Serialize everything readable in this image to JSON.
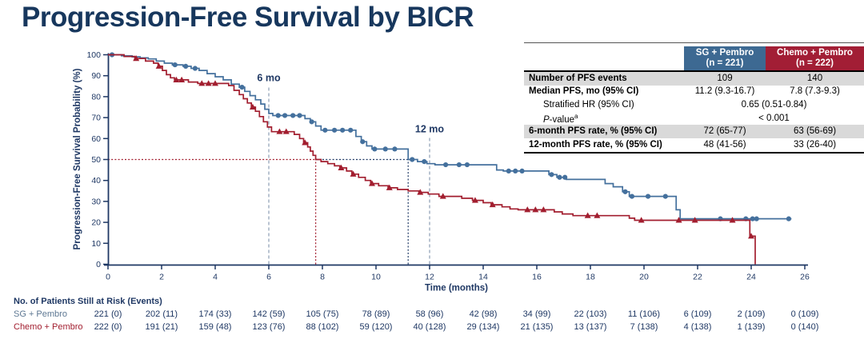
{
  "title": "Progression-Free Survival by BICR",
  "colors": {
    "navy": "#1F3864",
    "title_navy": "#17375D",
    "sg_blue": "#44709D",
    "sg_header": "#3D6992",
    "chemo_red": "#A21E2F",
    "chemo_header": "#A21E35",
    "shaded_row": "#D9D9D9",
    "dashed_ref": "#8C9DB3",
    "at_risk_sg_label": "#5E7893"
  },
  "chart_data": {
    "type": "line",
    "subtype": "kaplan-meier-step",
    "xlabel": "Time (months)",
    "ylabel": "Progression-Free Survival Probability (%)",
    "xlim": [
      0,
      26
    ],
    "ylim": [
      0,
      100
    ],
    "x_ticks": [
      0,
      2,
      4,
      6,
      8,
      10,
      12,
      14,
      16,
      18,
      20,
      22,
      24,
      26
    ],
    "y_ticks": [
      0,
      10,
      20,
      30,
      40,
      50,
      60,
      70,
      80,
      90,
      100
    ],
    "grid": false,
    "legend_position": "none",
    "annotations": [
      {
        "label": "6 mo",
        "x": 6,
        "label_pct": 89,
        "line_top_pct": 85
      },
      {
        "label": "12 mo",
        "x": 12,
        "label_pct": 64.5,
        "line_top_pct": 60.5
      }
    ],
    "reference_lines": [
      {
        "orientation": "v",
        "at": 6,
        "from": 0,
        "to": 85,
        "color": "dashed_ref",
        "style": "dash"
      },
      {
        "orientation": "v",
        "at": 12,
        "from": 0,
        "to": 60.5,
        "color": "dashed_ref",
        "style": "dash"
      },
      {
        "orientation": "h",
        "at": 50,
        "from": 0,
        "to": 7.75,
        "color": "chemo_red",
        "style": "dot"
      },
      {
        "orientation": "h",
        "at": 50,
        "from": 7.75,
        "to": 11.2,
        "color": "navy",
        "style": "dot"
      },
      {
        "orientation": "v",
        "at": 7.75,
        "from": 0,
        "to": 50,
        "color": "chemo_red",
        "style": "dot"
      },
      {
        "orientation": "v",
        "at": 11.2,
        "from": 0,
        "to": 50,
        "color": "navy",
        "style": "dot"
      }
    ],
    "series": [
      {
        "name": "SG + Pembro",
        "color_key": "sg_blue",
        "marker": "circle",
        "points": [
          [
            0,
            100
          ],
          [
            0.5,
            99.5
          ],
          [
            0.9,
            99
          ],
          [
            1.2,
            98.5
          ],
          [
            1.5,
            98
          ],
          [
            1.8,
            97
          ],
          [
            2.1,
            96
          ],
          [
            2.4,
            95.2
          ],
          [
            2.8,
            94.5
          ],
          [
            3.1,
            93.5
          ],
          [
            3.4,
            92.5
          ],
          [
            3.7,
            91
          ],
          [
            4.0,
            89.5
          ],
          [
            4.3,
            88
          ],
          [
            4.6,
            86
          ],
          [
            4.9,
            84.5
          ],
          [
            5.1,
            82.5
          ],
          [
            5.3,
            80.5
          ],
          [
            5.5,
            78.5
          ],
          [
            5.7,
            76.5
          ],
          [
            5.85,
            74
          ],
          [
            6.0,
            72
          ],
          [
            6.15,
            71
          ],
          [
            7.35,
            69.5
          ],
          [
            7.55,
            68
          ],
          [
            7.75,
            66
          ],
          [
            7.95,
            64
          ],
          [
            9.25,
            61
          ],
          [
            9.45,
            58.5
          ],
          [
            9.65,
            56.5
          ],
          [
            9.85,
            55
          ],
          [
            11.2,
            50
          ],
          [
            11.55,
            49
          ],
          [
            11.9,
            48
          ],
          [
            12.2,
            47.5
          ],
          [
            14.5,
            45
          ],
          [
            14.75,
            44.5
          ],
          [
            16.45,
            42.8
          ],
          [
            16.75,
            41.5
          ],
          [
            17.1,
            40.5
          ],
          [
            18.55,
            38.5
          ],
          [
            18.85,
            37
          ],
          [
            19.2,
            34.6
          ],
          [
            19.45,
            32.4
          ],
          [
            21.2,
            26
          ],
          [
            21.35,
            21.7
          ],
          [
            25.5,
            21.7
          ]
        ],
        "censor_marks": [
          [
            0.15,
            100
          ],
          [
            2.5,
            95.2
          ],
          [
            2.9,
            94.5
          ],
          [
            3.25,
            93.5
          ],
          [
            5.0,
            84.5
          ],
          [
            6.35,
            71
          ],
          [
            6.6,
            71
          ],
          [
            6.9,
            71
          ],
          [
            7.15,
            71
          ],
          [
            7.6,
            68
          ],
          [
            8.1,
            64
          ],
          [
            8.45,
            64
          ],
          [
            8.75,
            64
          ],
          [
            9.05,
            64
          ],
          [
            9.5,
            58.5
          ],
          [
            9.95,
            55
          ],
          [
            10.35,
            55
          ],
          [
            10.7,
            55
          ],
          [
            11.35,
            50
          ],
          [
            11.8,
            49
          ],
          [
            12.6,
            47.5
          ],
          [
            13.1,
            47.5
          ],
          [
            13.4,
            47.5
          ],
          [
            14.95,
            44.5
          ],
          [
            15.2,
            44.5
          ],
          [
            15.45,
            44.5
          ],
          [
            16.55,
            42.8
          ],
          [
            16.85,
            41.5
          ],
          [
            17.05,
            41.5
          ],
          [
            19.3,
            34.6
          ],
          [
            19.55,
            32.4
          ],
          [
            20.15,
            32.4
          ],
          [
            20.8,
            32.4
          ],
          [
            22.85,
            21.7
          ],
          [
            23.8,
            21.7
          ],
          [
            24.05,
            21.7
          ],
          [
            24.2,
            21.7
          ],
          [
            25.4,
            21.7
          ]
        ]
      },
      {
        "name": "Chemo + Pembro",
        "color_key": "chemo_red",
        "marker": "triangle",
        "points": [
          [
            0,
            100
          ],
          [
            0.6,
            99.2
          ],
          [
            1.0,
            98.2
          ],
          [
            1.4,
            97
          ],
          [
            1.7,
            96
          ],
          [
            1.87,
            94.5
          ],
          [
            2.03,
            92.5
          ],
          [
            2.18,
            90.5
          ],
          [
            2.33,
            89
          ],
          [
            2.48,
            88
          ],
          [
            3.0,
            87
          ],
          [
            3.35,
            86.3
          ],
          [
            4.5,
            85.3
          ],
          [
            4.7,
            83
          ],
          [
            4.9,
            81
          ],
          [
            5.05,
            79
          ],
          [
            5.2,
            77
          ],
          [
            5.35,
            75
          ],
          [
            5.5,
            73
          ],
          [
            5.65,
            70.5
          ],
          [
            5.8,
            68
          ],
          [
            5.95,
            65.5
          ],
          [
            6.1,
            63.3
          ],
          [
            6.95,
            62
          ],
          [
            7.15,
            60
          ],
          [
            7.3,
            58
          ],
          [
            7.45,
            56
          ],
          [
            7.55,
            54
          ],
          [
            7.65,
            52
          ],
          [
            7.75,
            50
          ],
          [
            7.95,
            49
          ],
          [
            8.2,
            48
          ],
          [
            8.45,
            47
          ],
          [
            8.65,
            46
          ],
          [
            8.9,
            44.5
          ],
          [
            9.1,
            43
          ],
          [
            9.35,
            41.5
          ],
          [
            9.6,
            40
          ],
          [
            9.8,
            38.5
          ],
          [
            10.1,
            37.5
          ],
          [
            10.45,
            36.5
          ],
          [
            10.8,
            35.7
          ],
          [
            11.2,
            35
          ],
          [
            11.6,
            34.3
          ],
          [
            11.95,
            33.5
          ],
          [
            12.35,
            32.4
          ],
          [
            13.2,
            31.5
          ],
          [
            13.6,
            30.5
          ],
          [
            14.0,
            29.4
          ],
          [
            14.3,
            28.4
          ],
          [
            14.7,
            27.4
          ],
          [
            15.0,
            26.4
          ],
          [
            15.3,
            26
          ],
          [
            16.65,
            25
          ],
          [
            16.95,
            24
          ],
          [
            17.35,
            23.2
          ],
          [
            19.45,
            22
          ],
          [
            19.65,
            21
          ],
          [
            23.85,
            21
          ],
          [
            23.95,
            13.4
          ],
          [
            24.15,
            0
          ]
        ],
        "censor_marks": [
          [
            1.05,
            98.2
          ],
          [
            1.9,
            94.5
          ],
          [
            2.55,
            88
          ],
          [
            2.75,
            88
          ],
          [
            3.5,
            86.3
          ],
          [
            3.75,
            86.3
          ],
          [
            4.0,
            86.3
          ],
          [
            5.4,
            75
          ],
          [
            6.4,
            63.3
          ],
          [
            6.65,
            63.3
          ],
          [
            7.35,
            58
          ],
          [
            8.7,
            46
          ],
          [
            9.15,
            43
          ],
          [
            9.85,
            38.5
          ],
          [
            10.5,
            36.5
          ],
          [
            11.65,
            34.3
          ],
          [
            12.5,
            32.4
          ],
          [
            13.7,
            30.5
          ],
          [
            14.35,
            28.4
          ],
          [
            15.65,
            26
          ],
          [
            15.95,
            26
          ],
          [
            16.25,
            26
          ],
          [
            17.9,
            23.2
          ],
          [
            18.25,
            23.2
          ],
          [
            19.9,
            21
          ],
          [
            21.3,
            21
          ],
          [
            21.9,
            21
          ],
          [
            23.3,
            21
          ],
          [
            24.0,
            13.4
          ]
        ]
      }
    ]
  },
  "stats_table": {
    "column_headers": [
      {
        "line1": "SG + Pembro",
        "line2": "(n = 221)",
        "bg_key": "sg_header"
      },
      {
        "line1": "Chemo + Pembro",
        "line2": "(n = 222)",
        "bg_key": "chemo_header"
      }
    ],
    "rows": [
      {
        "label": "Number of PFS events",
        "bold": true,
        "shaded": true,
        "values": [
          "109",
          "140"
        ]
      },
      {
        "label": "Median PFS, mo (95% CI)",
        "bold": true,
        "shaded": false,
        "values": [
          "11.2 (9.3-16.7)",
          "7.8 (7.3-9.3)"
        ]
      },
      {
        "label": "Stratified HR (95% CI)",
        "bold": false,
        "indent": true,
        "shaded": false,
        "span_value": "0.65 (0.51-0.84)"
      },
      {
        "label_italic": "P",
        "label_rest": "-value",
        "label_sup": "a",
        "bold": false,
        "indent": true,
        "shaded": false,
        "span_value": "< 0.001"
      },
      {
        "label": "6-month PFS rate, % (95% CI)",
        "bold": true,
        "shaded": true,
        "values": [
          "72 (65-77)",
          "63 (56-69)"
        ]
      },
      {
        "label": "12-month PFS rate, % (95% CI)",
        "bold": true,
        "shaded": false,
        "values": [
          "48 (41-56)",
          "33 (26-40)"
        ]
      }
    ]
  },
  "at_risk": {
    "header": "No. of Patients Still at Risk (Events)",
    "time_points": [
      0,
      2,
      4,
      6,
      8,
      10,
      12,
      14,
      16,
      18,
      20,
      22,
      24,
      26
    ],
    "groups": [
      {
        "name": "SG + Pembro",
        "label_color_key": "at_risk_sg_label",
        "values": [
          "221 (0)",
          "202 (11)",
          "174 (33)",
          "142 (59)",
          "105 (75)",
          "78 (89)",
          "58 (96)",
          "42 (98)",
          "34 (99)",
          "22 (103)",
          "11 (106)",
          "6 (109)",
          "2 (109)",
          "0 (109)"
        ]
      },
      {
        "name": "Chemo + Pembro",
        "label_color_key": "chemo_red",
        "values": [
          "222 (0)",
          "191 (21)",
          "159 (48)",
          "123 (76)",
          "88 (102)",
          "59 (120)",
          "40 (128)",
          "29 (134)",
          "21 (135)",
          "13 (137)",
          "7 (138)",
          "4 (138)",
          "1 (139)",
          "0 (140)"
        ]
      }
    ]
  }
}
